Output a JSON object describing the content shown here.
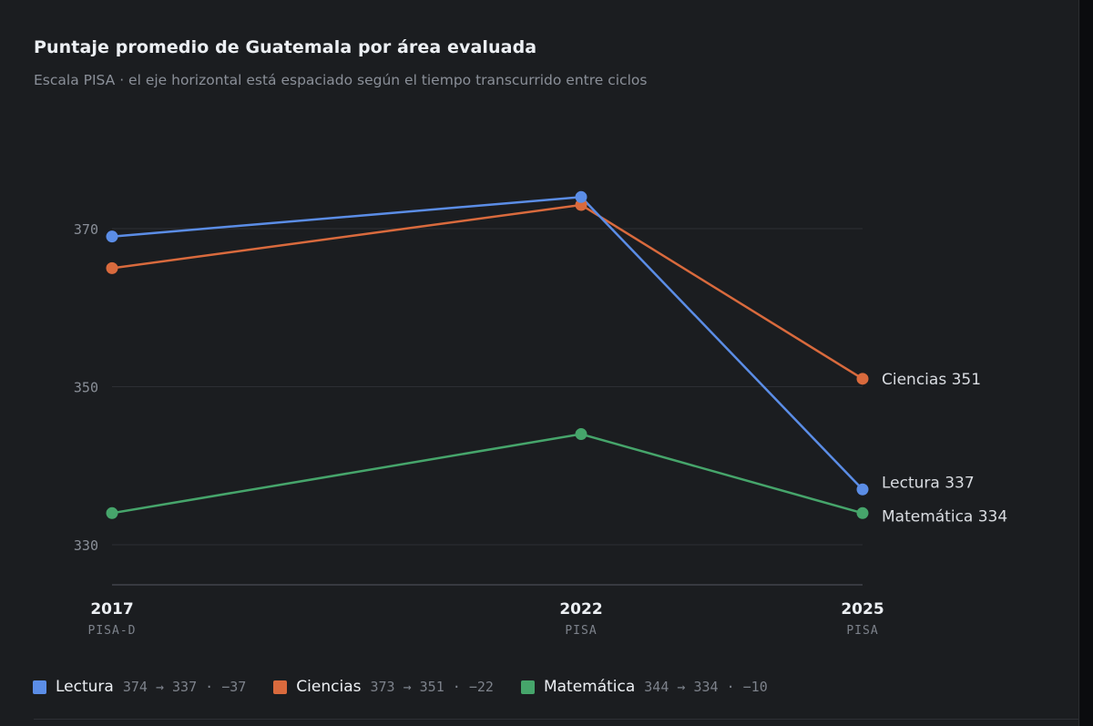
{
  "header": {
    "title": "Puntaje promedio de Guatemala por área evaluada",
    "subtitle": "Escala PISA · el eje horizontal está espaciado según el tiempo transcurrido entre ciclos"
  },
  "chart_data": {
    "type": "line",
    "title": "Puntaje promedio de Guatemala por área evaluada",
    "subtitle": "Escala PISA · el eje horizontal está espaciado según el tiempo transcurrido entre ciclos",
    "x": [
      2017,
      2022,
      2025
    ],
    "x_tick_labels": [
      "2017",
      "2022",
      "2025"
    ],
    "x_tick_sublabels": [
      "PISA-D",
      "PISA",
      "PISA"
    ],
    "y_ticks": [
      330,
      350,
      370
    ],
    "ylim": [
      325,
      378
    ],
    "grid": true,
    "series": [
      {
        "name": "Lectura",
        "values": [
          369,
          374,
          337
        ],
        "color": "#5b8de6",
        "end_label": "Lectura 337"
      },
      {
        "name": "Ciencias",
        "values": [
          365,
          373,
          351
        ],
        "color": "#d96a3d",
        "end_label": "Ciencias 351"
      },
      {
        "name": "Matemática",
        "values": [
          334,
          344,
          334
        ],
        "color": "#46a56b",
        "end_label": "Matemática 334"
      }
    ]
  },
  "legend": [
    {
      "name": "Lectura",
      "stat": "374 → 337 · −37",
      "color": "#5b8de6"
    },
    {
      "name": "Ciencias",
      "stat": "373 → 351 · −22",
      "color": "#d96a3d"
    },
    {
      "name": "Matemática",
      "stat": "344 → 334 · −10",
      "color": "#46a56b"
    }
  ]
}
